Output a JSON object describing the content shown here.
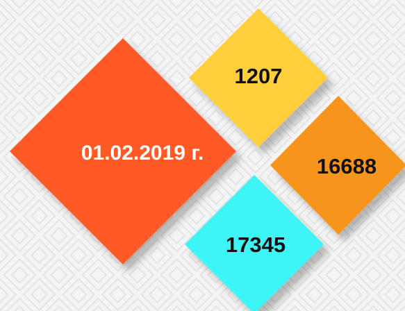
{
  "tiles": [
    {
      "text": "1207"
    },
    {
      "text": "16688"
    },
    {
      "text": "17345"
    },
    {
      "text": "01.02.2019 г."
    }
  ]
}
